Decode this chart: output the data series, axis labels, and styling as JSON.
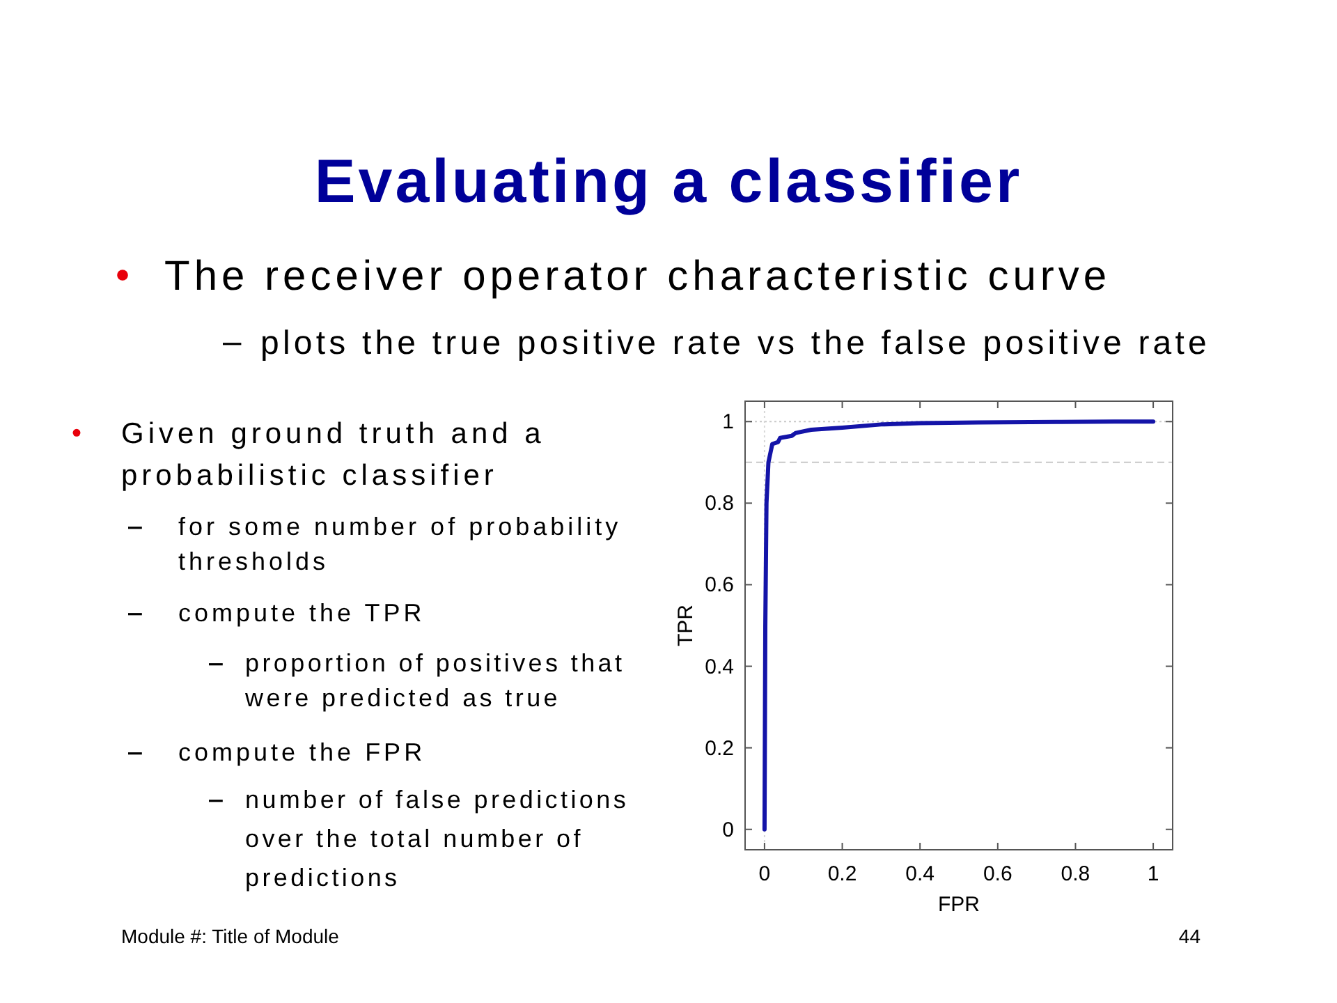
{
  "chart_data": {
    "type": "line",
    "title": "Evaluating a classifier",
    "subtitle": "The receiver operator characteristic curve",
    "xlabel": "FPR",
    "ylabel": "TPR",
    "x": [
      0,
      0.002,
      0.005,
      0.01,
      0.02,
      0.035,
      0.04,
      0.07,
      0.08,
      0.12,
      0.2,
      0.3,
      0.4,
      0.55,
      0.75,
      0.9,
      1
    ],
    "series": [
      {
        "color": "#1414a8",
        "values": [
          0,
          0.5,
          0.8,
          0.9,
          0.945,
          0.95,
          0.96,
          0.965,
          0.972,
          0.98,
          0.985,
          0.993,
          0.996,
          0.998,
          0.999,
          1,
          1
        ]
      }
    ],
    "xlim": [
      -0.05,
      1.05
    ],
    "ylim": [
      -0.05,
      1.05
    ],
    "xticks": [
      0,
      0.2,
      0.4,
      0.6,
      0.8,
      1
    ],
    "yticks": [
      0,
      0.2,
      0.4,
      0.6,
      0.8,
      1
    ],
    "grid": false,
    "marker": "none",
    "line_style": "solid",
    "ref_lines": [
      {
        "axis": "y",
        "value": 1,
        "color": "#c8c8c8",
        "line_style": "dotted"
      },
      {
        "axis": "y",
        "value": 0.9,
        "color": "#c8c8c8",
        "line_style": "dashed"
      },
      {
        "axis": "x",
        "value": 0,
        "color": "#d8d8d8",
        "line_style": "dotted"
      }
    ],
    "annotations": [
      "plots the true positive rate vs the false positive rate",
      "Given ground truth and a probabilistic classifier",
      "for some number of probability thresholds",
      "compute the TPR",
      "proportion of positives that were predicted as true",
      "compute the FPR",
      "number of false predictions over the total number of predictions",
      "Module #: Title of Module",
      "44"
    ]
  }
}
